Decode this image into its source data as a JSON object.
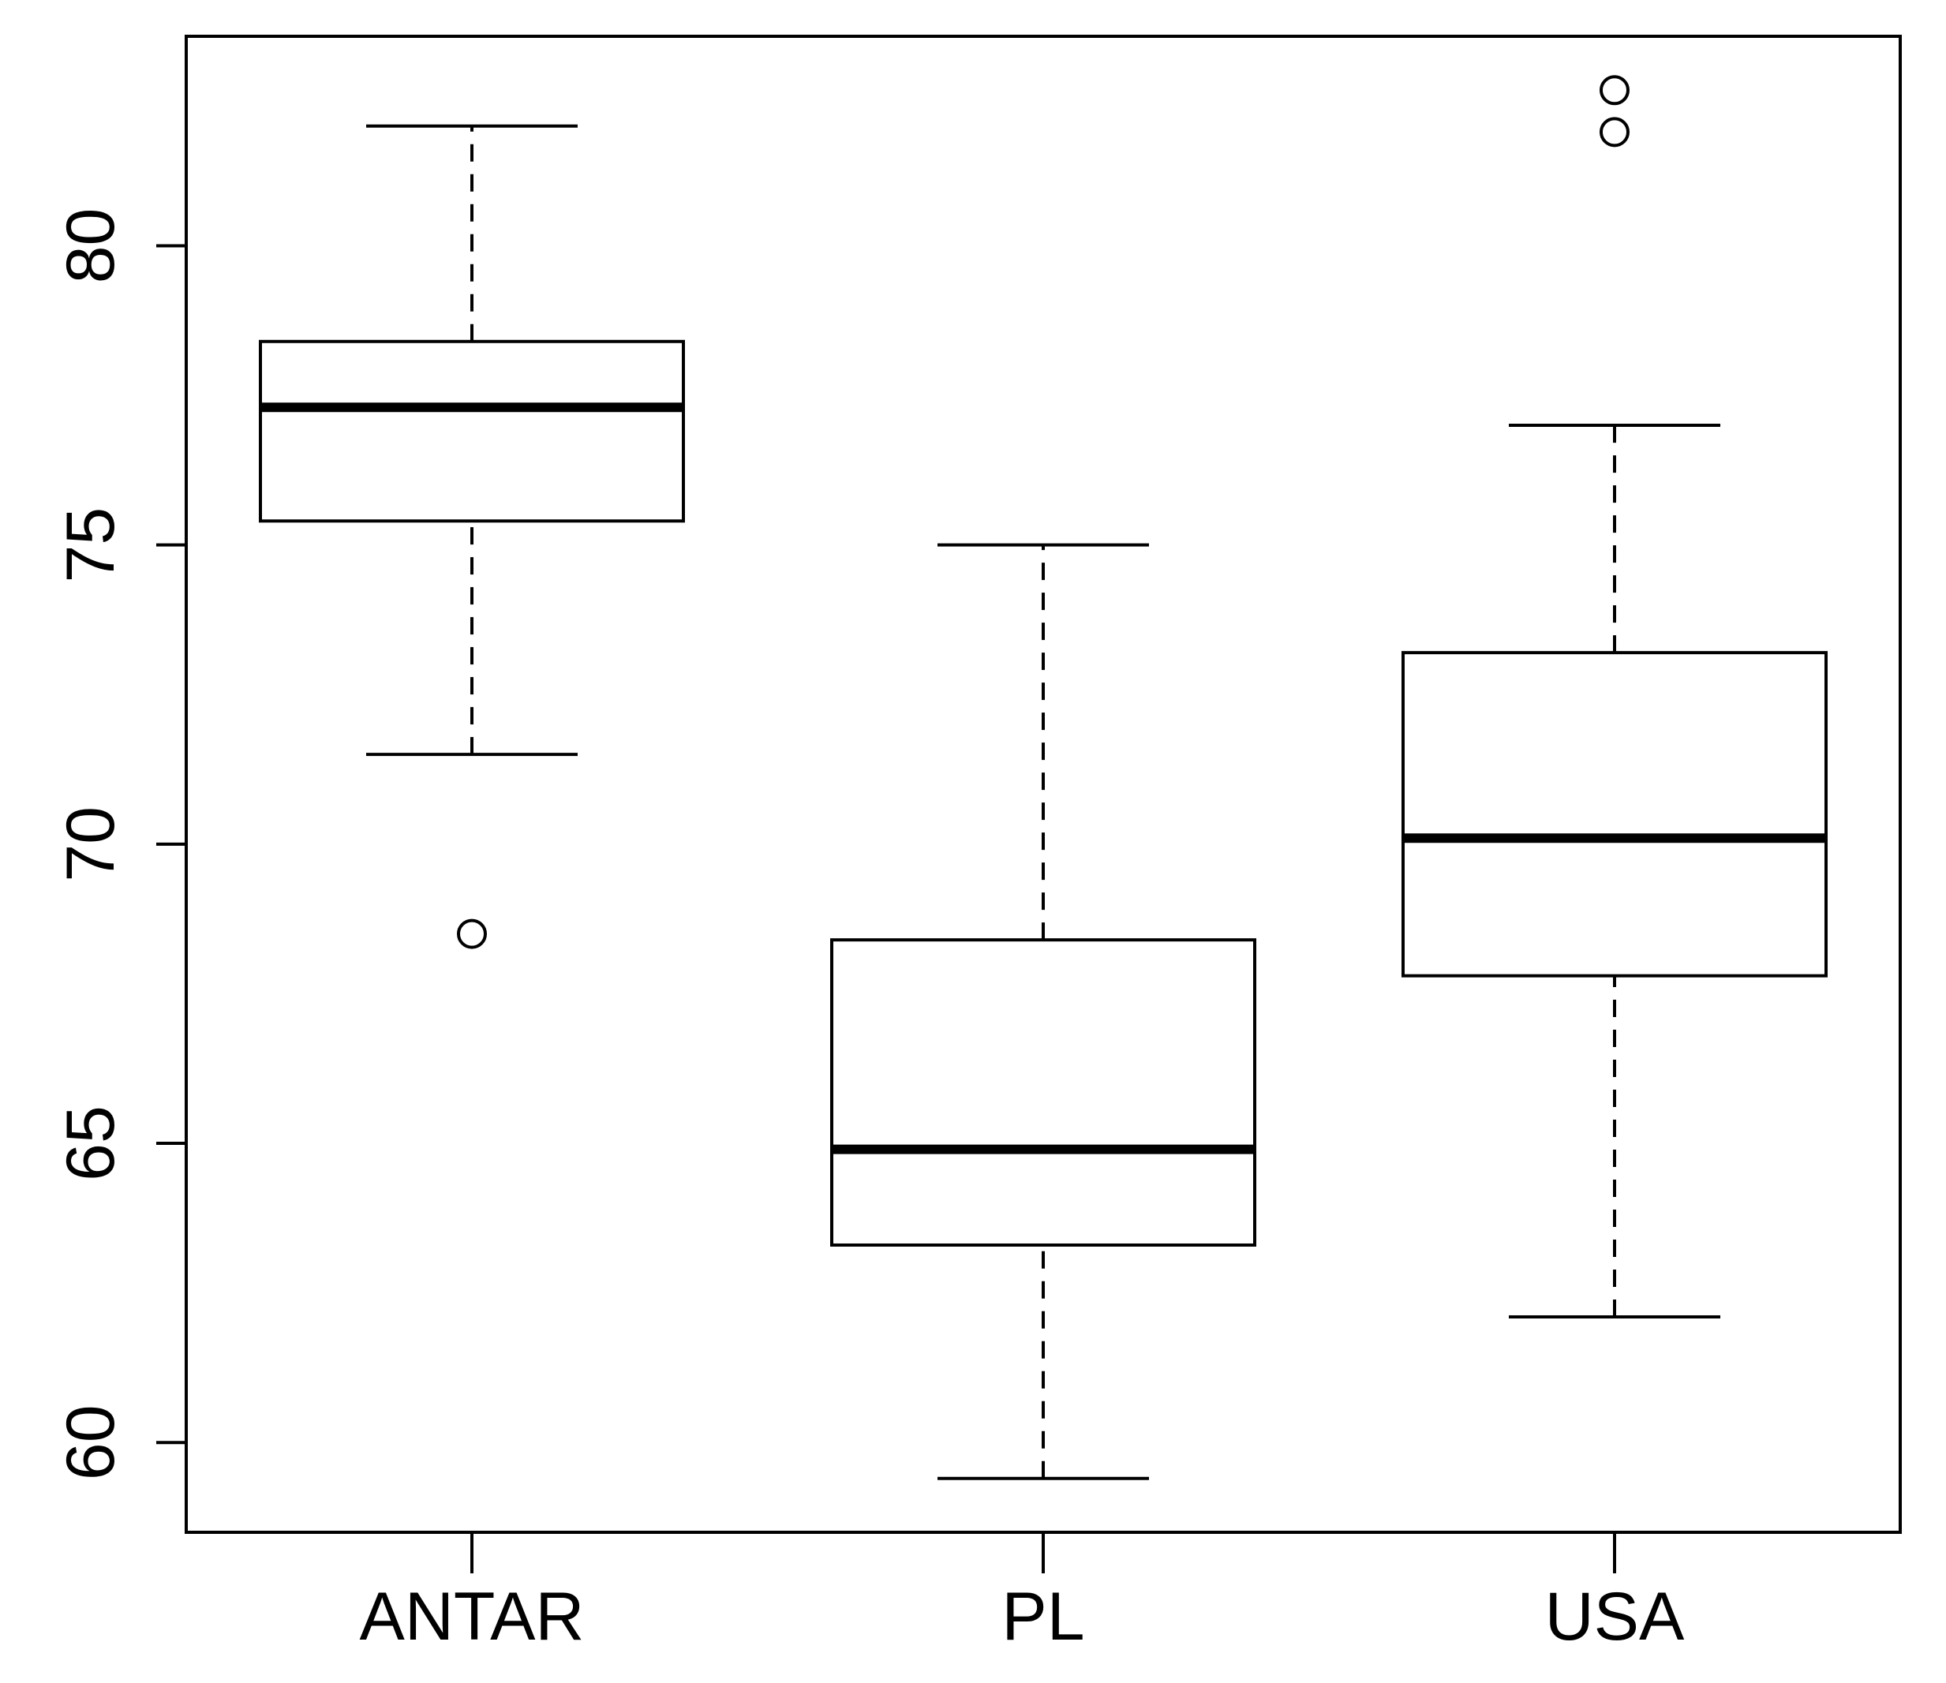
{
  "chart_data": {
    "type": "box",
    "title": "",
    "xlabel": "",
    "ylabel": "",
    "categories": [
      "ANTAR",
      "PL",
      "USA"
    ],
    "ylim": [
      58.5,
      83.5
    ],
    "yticks": [
      "60",
      "65",
      "70",
      "75",
      "80"
    ],
    "grid": false,
    "legend": "none",
    "colors": {
      "stroke": "#000000",
      "box_fill": "#ffffff",
      "background": "#ffffff"
    },
    "boxes": [
      {
        "category": "ANTAR",
        "whisker_low": 71.5,
        "q1": 75.4,
        "median": 77.3,
        "q3": 78.4,
        "whisker_high": 82.0,
        "outliers": [
          68.5
        ]
      },
      {
        "category": "PL",
        "whisker_low": 59.4,
        "q1": 63.3,
        "median": 64.9,
        "q3": 68.4,
        "whisker_high": 75.0,
        "outliers": []
      },
      {
        "category": "USA",
        "whisker_low": 62.1,
        "q1": 67.8,
        "median": 70.1,
        "q3": 73.2,
        "whisker_high": 77.0,
        "outliers": [
          81.9,
          82.6
        ]
      }
    ]
  }
}
